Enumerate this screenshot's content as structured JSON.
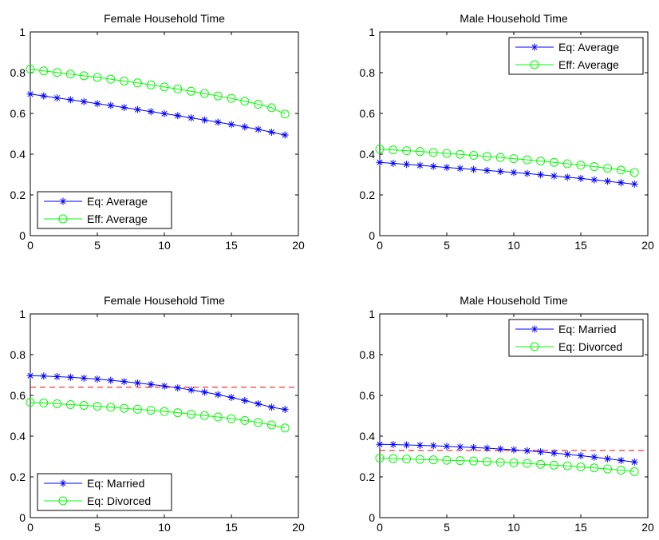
{
  "chart_data": [
    {
      "type": "line",
      "title": "Female Household Time",
      "xlim": [
        0,
        20
      ],
      "ylim": [
        0,
        1
      ],
      "xticks": [
        0,
        5,
        10,
        15,
        20
      ],
      "yticks": [
        0,
        0.2,
        0.4,
        0.6,
        0.8,
        1
      ],
      "legend": "bottom-left",
      "x": [
        0,
        1,
        2,
        3,
        4,
        5,
        6,
        7,
        8,
        9,
        10,
        11,
        12,
        13,
        14,
        15,
        16,
        17,
        18,
        19
      ],
      "series": [
        {
          "name": "Eq: Average",
          "color": "#0000ff",
          "marker": "star",
          "values": [
            0.695,
            0.686,
            0.676,
            0.667,
            0.658,
            0.648,
            0.639,
            0.629,
            0.619,
            0.609,
            0.599,
            0.589,
            0.578,
            0.568,
            0.557,
            0.546,
            0.534,
            0.522,
            0.508,
            0.494
          ]
        },
        {
          "name": "Eff: Average",
          "color": "#00ff00",
          "marker": "circle",
          "values": [
            0.817,
            0.809,
            0.801,
            0.793,
            0.785,
            0.777,
            0.768,
            0.759,
            0.75,
            0.74,
            0.73,
            0.72,
            0.709,
            0.698,
            0.686,
            0.674,
            0.66,
            0.645,
            0.628,
            0.597
          ]
        }
      ]
    },
    {
      "type": "line",
      "title": "Male Household Time",
      "xlim": [
        0,
        20
      ],
      "ylim": [
        0,
        1
      ],
      "xticks": [
        0,
        5,
        10,
        15,
        20
      ],
      "yticks": [
        0,
        0.2,
        0.4,
        0.6,
        0.8,
        1
      ],
      "legend": "top-right",
      "x": [
        0,
        1,
        2,
        3,
        4,
        5,
        6,
        7,
        8,
        9,
        10,
        11,
        12,
        13,
        14,
        15,
        16,
        17,
        18,
        19
      ],
      "series": [
        {
          "name": "Eq: Average",
          "color": "#0000ff",
          "marker": "star",
          "values": [
            0.36,
            0.355,
            0.35,
            0.345,
            0.34,
            0.335,
            0.33,
            0.325,
            0.32,
            0.315,
            0.31,
            0.305,
            0.299,
            0.293,
            0.287,
            0.281,
            0.274,
            0.267,
            0.26,
            0.253
          ]
        },
        {
          "name": "Eff: Average",
          "color": "#00ff00",
          "marker": "circle",
          "values": [
            0.425,
            0.421,
            0.417,
            0.413,
            0.409,
            0.404,
            0.399,
            0.394,
            0.389,
            0.384,
            0.378,
            0.372,
            0.366,
            0.36,
            0.353,
            0.346,
            0.339,
            0.331,
            0.322,
            0.31
          ]
        }
      ]
    },
    {
      "type": "line",
      "title": "Female Household Time",
      "xlim": [
        0,
        20
      ],
      "ylim": [
        0,
        1
      ],
      "xticks": [
        0,
        5,
        10,
        15,
        20
      ],
      "yticks": [
        0,
        0.2,
        0.4,
        0.6,
        0.8,
        1
      ],
      "legend": "bottom-left",
      "reference_line": {
        "y": 0.64,
        "color": "#ff0000",
        "style": "dashed"
      },
      "x": [
        0,
        1,
        2,
        3,
        4,
        5,
        6,
        7,
        8,
        9,
        10,
        11,
        12,
        13,
        14,
        15,
        16,
        17,
        18,
        19
      ],
      "series": [
        {
          "name": "Eq: Married",
          "color": "#0000ff",
          "marker": "star",
          "values": [
            0.697,
            0.695,
            0.692,
            0.689,
            0.685,
            0.68,
            0.674,
            0.668,
            0.661,
            0.654,
            0.646,
            0.637,
            0.627,
            0.616,
            0.604,
            0.59,
            0.575,
            0.559,
            0.542,
            0.531
          ]
        },
        {
          "name": "Eq: Divorced",
          "color": "#00ff00",
          "marker": "circle",
          "values": [
            0.566,
            0.563,
            0.559,
            0.555,
            0.551,
            0.547,
            0.542,
            0.537,
            0.532,
            0.527,
            0.521,
            0.515,
            0.508,
            0.501,
            0.494,
            0.486,
            0.477,
            0.467,
            0.455,
            0.44
          ]
        }
      ]
    },
    {
      "type": "line",
      "title": "Male Household Time",
      "xlim": [
        0,
        20
      ],
      "ylim": [
        0,
        1
      ],
      "xticks": [
        0,
        5,
        10,
        15,
        20
      ],
      "yticks": [
        0,
        0.2,
        0.4,
        0.6,
        0.8,
        1
      ],
      "legend": "top-right",
      "reference_line": {
        "y": 0.33,
        "color": "#ff0000",
        "style": "dashed"
      },
      "x": [
        0,
        1,
        2,
        3,
        4,
        5,
        6,
        7,
        8,
        9,
        10,
        11,
        12,
        13,
        14,
        15,
        16,
        17,
        18,
        19
      ],
      "series": [
        {
          "name": "Eq: Married",
          "color": "#0000ff",
          "marker": "star",
          "values": [
            0.36,
            0.359,
            0.357,
            0.355,
            0.353,
            0.35,
            0.347,
            0.344,
            0.341,
            0.337,
            0.333,
            0.328,
            0.323,
            0.317,
            0.311,
            0.304,
            0.297,
            0.289,
            0.281,
            0.273
          ]
        },
        {
          "name": "Eq: Divorced",
          "color": "#00ff00",
          "marker": "circle",
          "values": [
            0.292,
            0.29,
            0.288,
            0.286,
            0.284,
            0.282,
            0.28,
            0.278,
            0.275,
            0.272,
            0.269,
            0.266,
            0.262,
            0.258,
            0.254,
            0.249,
            0.244,
            0.239,
            0.233,
            0.226
          ]
        }
      ]
    }
  ]
}
